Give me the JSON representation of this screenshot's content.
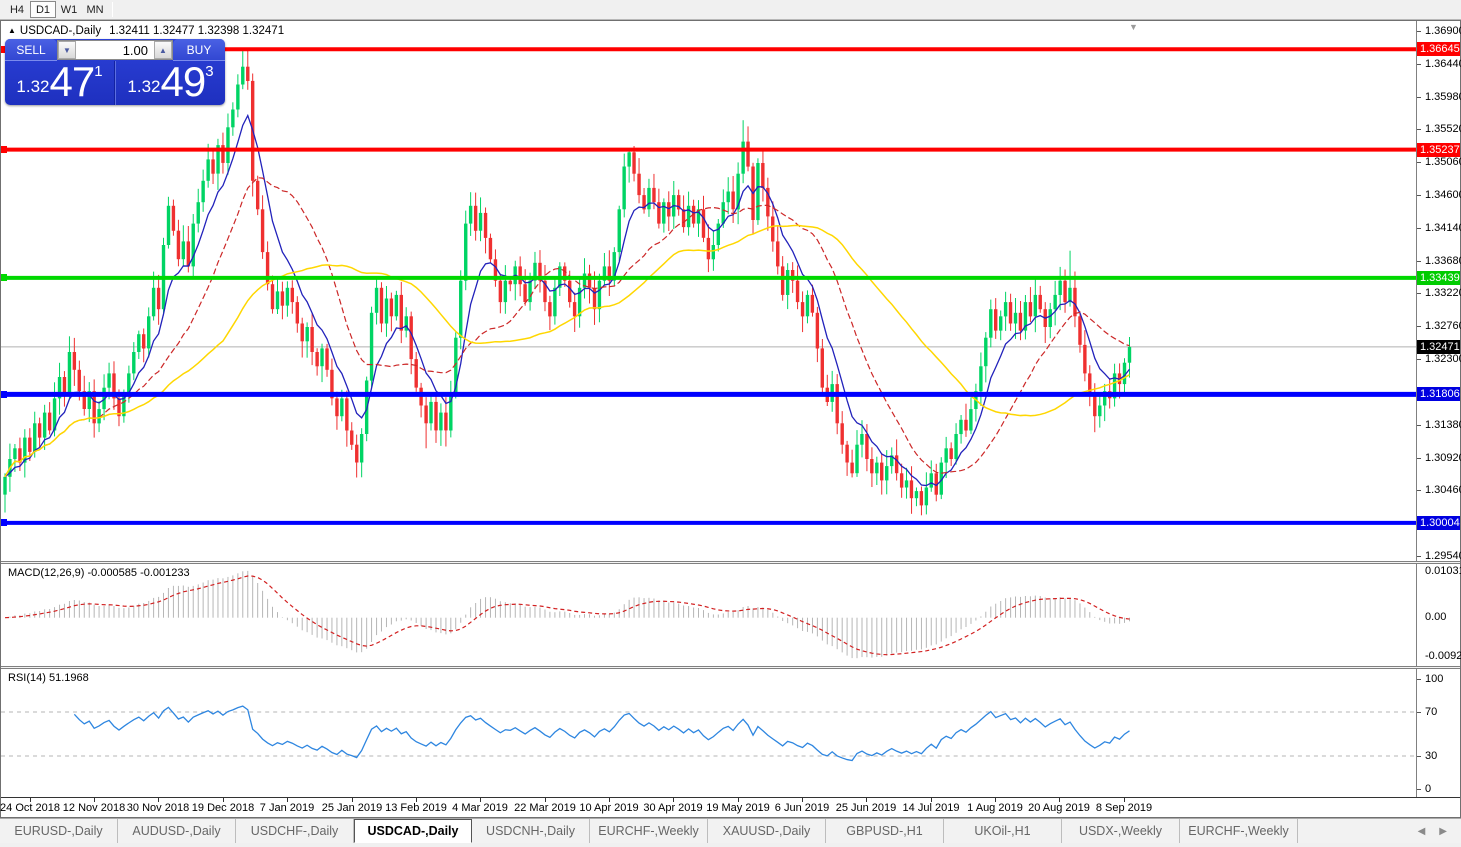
{
  "toolbar": {
    "timeframes": [
      "H4",
      "D1",
      "W1",
      "MN"
    ],
    "active_timeframe": "D1"
  },
  "chart_title": {
    "collapse_glyph": "▲",
    "symbol": "USDCAD-,Daily",
    "ohlc": "1.32411 1.32477 1.32398 1.32471"
  },
  "trade_panel": {
    "sell_label": "SELL",
    "buy_label": "BUY",
    "volume": "1.00",
    "sell_price": {
      "small": "1.32",
      "big": "47",
      "sup": "1"
    },
    "buy_price": {
      "small": "1.32",
      "big": "49",
      "sup": "3"
    }
  },
  "colors": {
    "candle_up": "#00d464",
    "candle_down": "#ef3030",
    "ma_fast": "#2222bb",
    "ma_mid": "#cc2828",
    "ma_slow": "#ffd700",
    "bid_line": "#b0b0b0",
    "macd_hist": "#b6b6b6",
    "macd_signal": "#d22020",
    "rsi_line": "#2e86e0",
    "rsi_level": "#b5b5b5"
  },
  "chart_data": {
    "type": "candlestick",
    "symbol": "USDCAD",
    "timeframe": "Daily",
    "x_labels": [
      "24 Oct 2018",
      "12 Nov 2018",
      "30 Nov 2018",
      "19 Dec 2018",
      "7 Jan 2019",
      "25 Jan 2019",
      "13 Feb 2019",
      "4 Mar 2019",
      "22 Mar 2019",
      "10 Apr 2019",
      "30 Apr 2019",
      "19 May 2019",
      "6 Jun 2019",
      "25 Jun 2019",
      "14 Jul 2019",
      "1 Aug 2019",
      "20 Aug 2019",
      "8 Sep 2019"
    ],
    "label_start_bar": 5,
    "label_every_bars": 13,
    "price_axis_ticks": [
      "1.36900",
      "1.36440",
      "1.35980",
      "1.35520",
      "1.35060",
      "1.34600",
      "1.34140",
      "1.33680",
      "1.33220",
      "1.32760",
      "1.32300",
      "1.31380",
      "1.30920",
      "1.30460",
      "1.29540"
    ],
    "axis_chips": [
      {
        "text": "1.36645",
        "bg": "#ff0000"
      },
      {
        "text": "1.35237",
        "bg": "#ff0000"
      },
      {
        "text": "1.33439",
        "bg": "#00cc00"
      },
      {
        "text": "1.32471",
        "bg": "#000000"
      },
      {
        "text": "1.31806",
        "bg": "#0000e0"
      },
      {
        "text": "1.30004",
        "bg": "#0000e0"
      }
    ],
    "hlines": [
      {
        "price": 1.36645,
        "color": "#ff0000",
        "width": 4
      },
      {
        "price": 1.35237,
        "color": "#ff0000",
        "width": 4
      },
      {
        "price": 1.33439,
        "color": "#00d800",
        "width": 4
      },
      {
        "price": 1.31806,
        "color": "#0000ff",
        "width": 5
      },
      {
        "price": 1.30004,
        "color": "#0000ff",
        "width": 4
      }
    ],
    "bid_price": 1.32471,
    "price_range": {
      "top": 1.369,
      "bottom": 1.2954
    },
    "candles": {
      "close": [
        1.3065,
        1.309,
        1.3105,
        1.3085,
        1.312,
        1.31,
        1.314,
        1.312,
        1.3155,
        1.313,
        1.3175,
        1.3205,
        1.318,
        1.324,
        1.3215,
        1.3185,
        1.316,
        1.3185,
        1.314,
        1.316,
        1.319,
        1.321,
        1.3175,
        1.315,
        1.318,
        1.321,
        1.324,
        1.3265,
        1.3245,
        1.329,
        1.333,
        1.33,
        1.339,
        1.3445,
        1.341,
        1.337,
        1.3395,
        1.336,
        1.342,
        1.345,
        1.348,
        1.351,
        1.349,
        1.353,
        1.3505,
        1.3555,
        1.358,
        1.3615,
        1.364,
        1.362,
        1.348,
        1.344,
        1.338,
        1.3335,
        1.33,
        1.3325,
        1.3305,
        1.333,
        1.331,
        1.328,
        1.3255,
        1.3275,
        1.324,
        1.322,
        1.3245,
        1.3215,
        1.3175,
        1.315,
        1.3175,
        1.313,
        1.311,
        1.3085,
        1.3125,
        1.32,
        1.3295,
        1.333,
        1.328,
        1.3315,
        1.329,
        1.332,
        1.327,
        1.329,
        1.323,
        1.319,
        1.3165,
        1.314,
        1.317,
        1.313,
        1.3155,
        1.313,
        1.318,
        1.326,
        1.334,
        1.342,
        1.3445,
        1.341,
        1.3435,
        1.34,
        1.337,
        1.334,
        1.331,
        1.334,
        1.3335,
        1.336,
        1.3335,
        1.331,
        1.334,
        1.3365,
        1.334,
        1.331,
        1.329,
        1.333,
        1.336,
        1.334,
        1.331,
        1.329,
        1.333,
        1.335,
        1.333,
        1.33,
        1.334,
        1.336,
        1.334,
        1.338,
        1.344,
        1.35,
        1.352,
        1.349,
        1.346,
        1.344,
        1.347,
        1.345,
        1.342,
        1.345,
        1.343,
        1.346,
        1.344,
        1.3415,
        1.3445,
        1.342,
        1.344,
        1.34,
        1.337,
        1.339,
        1.342,
        1.345,
        1.3465,
        1.344,
        1.349,
        1.3535,
        1.35,
        1.3425,
        1.3505,
        1.347,
        1.343,
        1.3395,
        1.336,
        1.332,
        1.3355,
        1.334,
        1.331,
        1.329,
        1.332,
        1.3295,
        1.3245,
        1.319,
        1.317,
        1.3195,
        1.314,
        1.311,
        1.3085,
        1.307,
        1.311,
        1.3125,
        1.309,
        1.307,
        1.3085,
        1.306,
        1.308,
        1.3095,
        1.307,
        1.305,
        1.306,
        1.3035,
        1.3045,
        1.3025,
        1.305,
        1.307,
        1.304,
        1.3085,
        1.3105,
        1.309,
        1.3125,
        1.3145,
        1.313,
        1.316,
        1.3185,
        1.322,
        1.326,
        1.33,
        1.327,
        1.329,
        1.331,
        1.328,
        1.3295,
        1.327,
        1.331,
        1.329,
        1.332,
        1.33,
        1.3275,
        1.33,
        1.332,
        1.334,
        1.331,
        1.333,
        1.329,
        1.325,
        1.321,
        1.318,
        1.315,
        1.3165,
        1.3185,
        1.3175,
        1.321,
        1.3195,
        1.3225,
        1.32471
      ]
    },
    "wick_overrides": {
      "0": {
        "low": 1.3015
      },
      "13": {
        "high": 1.3262
      },
      "48": {
        "high": 1.36635
      },
      "49": {
        "high": 1.3666
      },
      "71": {
        "low": 1.3064
      },
      "85": {
        "low": 1.3105
      },
      "126": {
        "high": 1.3522
      },
      "149": {
        "high": 1.3565
      },
      "185": {
        "low": 1.3011
      },
      "215": {
        "high": 1.3382
      },
      "221": {
        "low": 1.3134
      }
    },
    "macd": {
      "label": "MACD(12,26,9)",
      "value_macd": "-0.000585",
      "value_signal": "-0.001233",
      "axis_top": "0.010311",
      "axis_zero": "0.00",
      "axis_bottom": "-0.009203",
      "scale_max": 0.010311,
      "scale_min": -0.009203
    },
    "rsi": {
      "label": "RSI(14)",
      "value": "51.1968",
      "axis": [
        "100",
        "70",
        "30",
        "0"
      ],
      "levels": [
        70,
        30
      ]
    }
  },
  "tab_bar": {
    "tabs": [
      "EURUSD-,Daily",
      "AUDUSD-,Daily",
      "USDCHF-,Daily",
      "USDCAD-,Daily",
      "USDCNH-,Daily",
      "EURCHF-,Weekly",
      "XAUUSD-,Daily",
      "GBPUSD-,H1",
      "UKOil-,H1",
      "USDX-,Weekly",
      "EURCHF-,Weekly"
    ],
    "active_index": 3,
    "scroll_left_glyph": "◀",
    "scroll_right_glyph": "▶"
  }
}
